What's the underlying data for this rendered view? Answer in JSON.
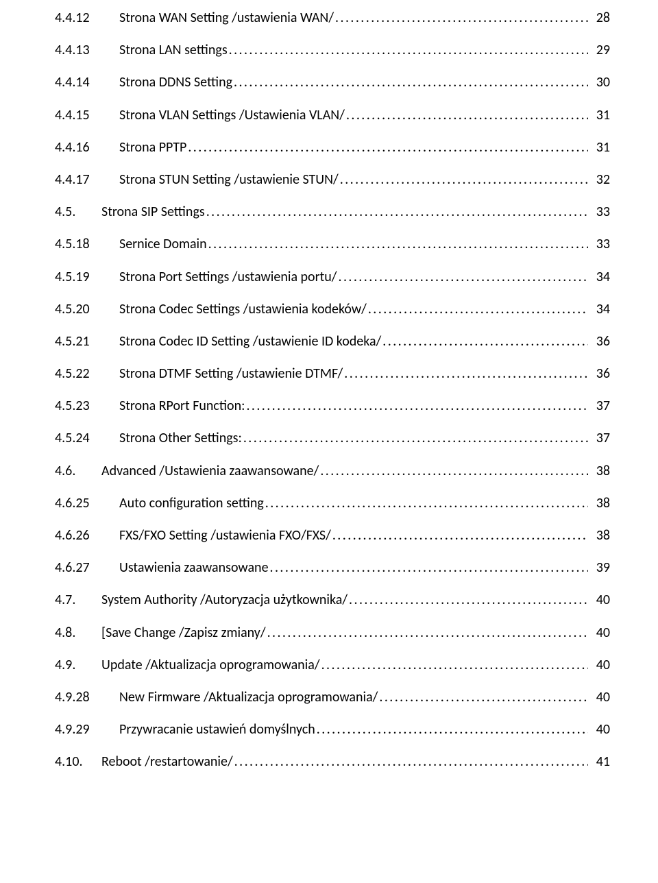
{
  "entries": [
    {
      "level": "sub",
      "num": "4.4.12",
      "title": "Strona WAN Setting /ustawienia WAN/",
      "page": "28"
    },
    {
      "level": "sub",
      "num": "4.4.13",
      "title": "Strona LAN settings",
      "page": "29"
    },
    {
      "level": "sub",
      "num": "4.4.14",
      "title": "Strona DDNS Setting",
      "page": "30"
    },
    {
      "level": "sub",
      "num": "4.4.15",
      "title": "Strona VLAN Settings /Ustawienia VLAN/",
      "page": "31"
    },
    {
      "level": "sub",
      "num": "4.4.16",
      "title": "Strona PPTP",
      "page": "31"
    },
    {
      "level": "sub",
      "num": "4.4.17",
      "title": "Strona STUN Setting /ustawienie STUN/",
      "page": "32"
    },
    {
      "level": "main",
      "num": "4.5.",
      "title": "Strona SIP Settings",
      "page": "33"
    },
    {
      "level": "sub",
      "num": "4.5.18",
      "title": "Sernice Domain",
      "page": "33"
    },
    {
      "level": "sub",
      "num": "4.5.19",
      "title": "Strona Port Settings /ustawienia portu/",
      "page": "34"
    },
    {
      "level": "sub",
      "num": "4.5.20",
      "title": "Strona Codec Settings /ustawienia kodeków/",
      "page": "34"
    },
    {
      "level": "sub",
      "num": "4.5.21",
      "title": "Strona Codec ID Setting /ustawienie ID kodeka/",
      "page": "36"
    },
    {
      "level": "sub",
      "num": "4.5.22",
      "title": "Strona DTMF Setting /ustawienie DTMF/",
      "page": "36"
    },
    {
      "level": "sub",
      "num": "4.5.23",
      "title": "Strona RPort Function:",
      "page": "37"
    },
    {
      "level": "sub",
      "num": "4.5.24",
      "title": "Strona Other Settings:",
      "page": "37"
    },
    {
      "level": "main",
      "num": "4.6.",
      "title": "Advanced /Ustawienia zaawansowane/",
      "page": "38"
    },
    {
      "level": "sub",
      "num": "4.6.25",
      "title": "Auto configuration setting",
      "page": "38"
    },
    {
      "level": "sub",
      "num": "4.6.26",
      "title": "FXS/FXO Setting /ustawienia FXO/FXS/",
      "page": "38"
    },
    {
      "level": "sub",
      "num": "4.6.27",
      "title": "Ustawienia zaawansowane",
      "page": "39"
    },
    {
      "level": "main",
      "num": "4.7.",
      "title": "System Authority /Autoryzacja użytkownika/",
      "page": "40"
    },
    {
      "level": "main",
      "num": "4.8.",
      "title": "[Save Change /Zapisz zmiany/",
      "page": "40"
    },
    {
      "level": "main",
      "num": "4.9.",
      "title": "Update /Aktualizacja oprogramowania/",
      "page": "40"
    },
    {
      "level": "sub",
      "num": "4.9.28",
      "title": "New Firmware /Aktualizacja oprogramowania/",
      "page": "40"
    },
    {
      "level": "sub",
      "num": "4.9.29",
      "title": "Przywracanie ustawień domyślnych",
      "page": "40"
    },
    {
      "level": "main",
      "num": "4.10.",
      "title": "Reboot /restartowanie/",
      "page": "41"
    }
  ]
}
